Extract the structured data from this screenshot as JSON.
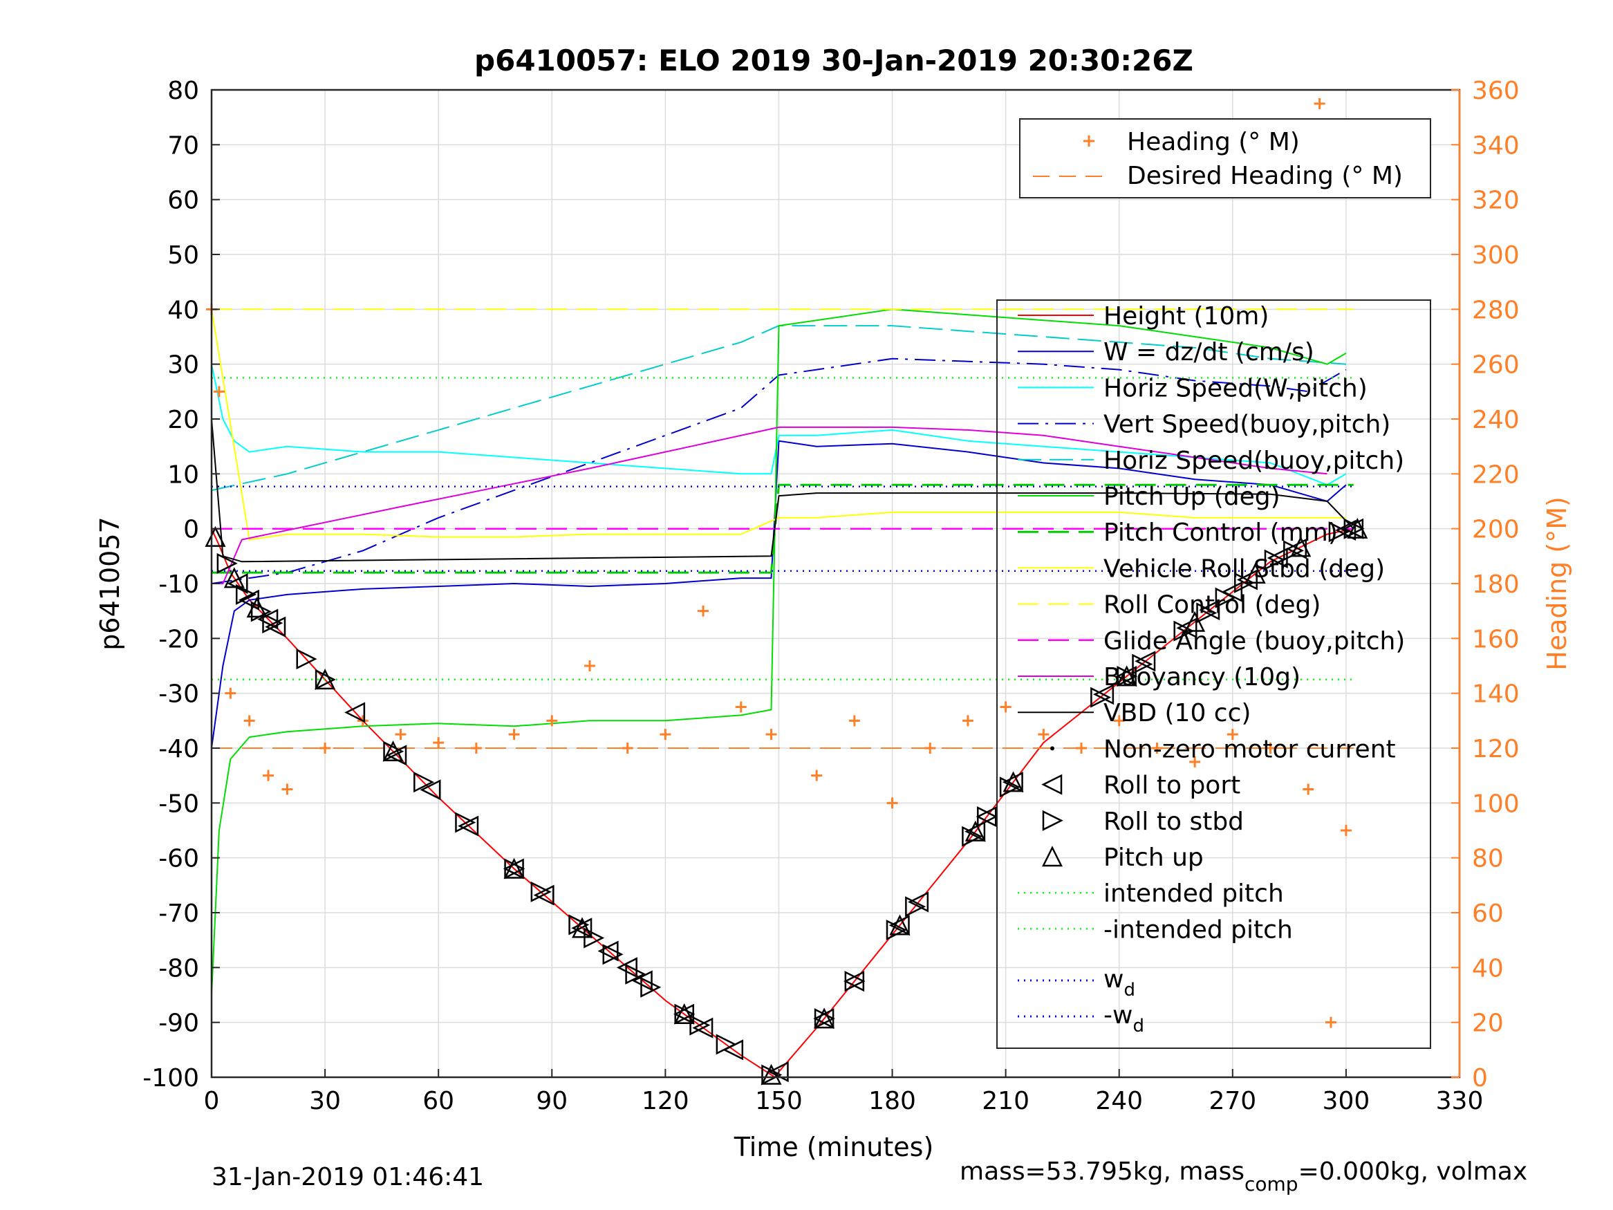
{
  "chart_data": {
    "type": "line",
    "title": "p6410057: ELO 2019 30-Jan-2019 20:30:26Z",
    "xlabel": "Time (minutes)",
    "ylabel": "p6410057",
    "y2label": "Heading (°M)",
    "xlim": [
      0,
      330
    ],
    "ylim": [
      -100,
      80
    ],
    "y2lim": [
      0,
      360
    ],
    "x_ticks": [
      "0",
      "30",
      "60",
      "90",
      "120",
      "150",
      "180",
      "210",
      "240",
      "270",
      "300",
      "330"
    ],
    "y_ticks": [
      "80",
      "70",
      "60",
      "50",
      "40",
      "30",
      "20",
      "10",
      "0",
      "-10",
      "-20",
      "-30",
      "-40",
      "-50",
      "-60",
      "-70",
      "-80",
      "-90",
      "-100"
    ],
    "y2_ticks": [
      "360",
      "340",
      "320",
      "300",
      "280",
      "260",
      "240",
      "220",
      "200",
      "180",
      "160",
      "140",
      "120",
      "100",
      "80",
      "60",
      "40",
      "20",
      "0"
    ],
    "grid": true,
    "colors": {
      "height": "#FF0000",
      "w": "#0000CC",
      "horiz_w": "#00FFFF",
      "vert_buoy": "#0000CC",
      "horiz_buoy": "#00CCCC",
      "pitch": "#00DD00",
      "pitch_ctrl": "#00CC00",
      "roll": "#FFFF00",
      "roll_ctrl": "#FFFF00",
      "glide": "#FF00FF",
      "buoyancy": "#DD00DD",
      "vbd": "#000000",
      "heading": "#FF7F27",
      "intended": "#00FF00",
      "wd": "#0000FF"
    },
    "legend_heading": {
      "placement": "top-right",
      "entries": [
        "Heading (° M)",
        "Desired Heading (° M)"
      ]
    },
    "legend_main": {
      "placement": "right",
      "entries": [
        "Height (10m)",
        "W = dz/dt (cm/s)",
        "Horiz Speed(W,pitch)",
        "Vert Speed(buoy,pitch)",
        "Horiz Speed(buoy,pitch)",
        "Pitch Up (deg)",
        "Pitch Control (mm)",
        "Vehicle Roll Stbd (deg)",
        "Roll Control (deg)",
        "Glide Angle (buoy,pitch)",
        "Buoyancy (10g)",
        "VBD (10 cc)",
        "Non-zero motor current",
        "Roll to port",
        "Roll to stbd",
        "Pitch up",
        "intended pitch",
        "-intended pitch"
      ],
      "wd_base": "w",
      "wd_sub": "d",
      "neg_wd_base": "-w"
    },
    "series": [
      {
        "name": "Height (10m)",
        "x": [
          0,
          2,
          5,
          10,
          20,
          40,
          60,
          80,
          100,
          120,
          140,
          149,
          150,
          160,
          180,
          200,
          210,
          220,
          240,
          260,
          280,
          295,
          302
        ],
        "values": [
          0,
          -3,
          -8,
          -13,
          -20,
          -35,
          -49,
          -62,
          -74,
          -86,
          -96,
          -100,
          -99,
          -91,
          -74,
          -57,
          -48,
          -39,
          -28,
          -17,
          -6,
          -1,
          0
        ]
      },
      {
        "name": "W = dz/dt (cm/s)",
        "x": [
          0,
          3,
          6,
          10,
          20,
          40,
          60,
          80,
          100,
          120,
          140,
          148,
          150,
          160,
          180,
          200,
          220,
          240,
          260,
          280,
          295,
          300
        ],
        "values": [
          -40,
          -25,
          -15,
          -13,
          -12,
          -11,
          -10.5,
          -10,
          -10.5,
          -10,
          -9,
          -9,
          16,
          15,
          15.5,
          14,
          12,
          11,
          9,
          8,
          5,
          8
        ]
      },
      {
        "name": "Horiz Speed(W,pitch)",
        "x": [
          0,
          3,
          6,
          10,
          20,
          40,
          60,
          80,
          100,
          120,
          140,
          148,
          150,
          160,
          180,
          200,
          220,
          240,
          260,
          280,
          295,
          300
        ],
        "values": [
          30,
          20,
          16,
          14,
          15,
          14,
          14,
          13,
          12,
          11,
          10,
          10,
          17,
          17,
          18,
          16,
          15,
          14,
          13,
          12,
          8,
          10
        ]
      },
      {
        "name": "Vert Speed(buoy,pitch)",
        "x": [
          0,
          20,
          40,
          60,
          80,
          100,
          120,
          140,
          150,
          160,
          180,
          200,
          220,
          240,
          260,
          280,
          290,
          300
        ],
        "values": [
          -10,
          -8,
          -4,
          2,
          7,
          12,
          17,
          22,
          28,
          29,
          31,
          30.5,
          30,
          29,
          27,
          26,
          25,
          29
        ]
      },
      {
        "name": "Horiz Speed(buoy,pitch)",
        "x": [
          0,
          20,
          40,
          60,
          80,
          100,
          120,
          140,
          150,
          160,
          180,
          200,
          220,
          240,
          260,
          280,
          300
        ],
        "values": [
          7,
          10,
          14,
          18,
          22,
          26,
          30,
          34,
          37,
          37,
          37,
          36,
          35,
          34,
          33,
          31,
          30
        ]
      },
      {
        "name": "Pitch Up (deg)",
        "x": [
          0,
          2,
          5,
          10,
          20,
          40,
          60,
          80,
          100,
          120,
          140,
          148,
          150,
          160,
          180,
          200,
          220,
          240,
          260,
          280,
          295,
          300
        ],
        "values": [
          -85,
          -55,
          -42,
          -38,
          -37,
          -36,
          -35.5,
          -36,
          -35,
          -35,
          -34,
          -33,
          37,
          38,
          40,
          39,
          38,
          37,
          35,
          33,
          30,
          32
        ]
      },
      {
        "name": "Pitch Control (mm)",
        "x": [
          0,
          148,
          150,
          302
        ],
        "values": [
          -8,
          -8,
          8,
          8
        ]
      },
      {
        "name": "Vehicle Roll Stbd (deg)",
        "x": [
          0,
          10,
          20,
          40,
          60,
          80,
          100,
          120,
          140,
          150,
          160,
          180,
          200,
          220,
          240,
          260,
          280,
          300
        ],
        "values": [
          40,
          -2,
          -1,
          -1,
          -1.5,
          -1.5,
          -1,
          -1,
          -1,
          2,
          2,
          3,
          3,
          3,
          3,
          2,
          2,
          2
        ]
      },
      {
        "name": "Roll Control (deg)",
        "x": [
          0,
          302
        ],
        "values": [
          40,
          40
        ]
      },
      {
        "name": "Glide Angle (buoy,pitch)",
        "x": [
          0,
          302
        ],
        "values": [
          0,
          0
        ]
      },
      {
        "name": "Buoyancy (10g)",
        "x": [
          0,
          3,
          8,
          50,
          100,
          150,
          180,
          200,
          220,
          240,
          260,
          280,
          295
        ],
        "values": [
          -10,
          -10,
          -2,
          4,
          11,
          18.5,
          18.5,
          18,
          17,
          15,
          13,
          11,
          10
        ]
      },
      {
        "name": "VBD (10 cc)",
        "x": [
          0,
          3,
          8,
          148,
          150,
          160,
          200,
          240,
          280,
          295,
          302
        ],
        "values": [
          20,
          -5,
          -6,
          -5,
          6,
          6.5,
          6.5,
          6.5,
          6.3,
          5,
          0
        ]
      },
      {
        "name": "Heading (° M)",
        "x": [
          0,
          2,
          5,
          10,
          15,
          20,
          30,
          40,
          50,
          60,
          70,
          80,
          90,
          100,
          110,
          120,
          130,
          140,
          148,
          160,
          170,
          180,
          190,
          200,
          210,
          220,
          230,
          240,
          250,
          260,
          270,
          280,
          290,
          293,
          296,
          300
        ],
        "values": [
          280,
          250,
          140,
          130,
          110,
          105,
          120,
          130,
          125,
          122,
          120,
          125,
          130,
          150,
          120,
          125,
          170,
          135,
          125,
          110,
          130,
          100,
          120,
          130,
          135,
          125,
          120,
          130,
          120,
          115,
          125,
          120,
          105,
          355,
          20,
          90
        ]
      },
      {
        "name": "Desired Heading (° M)",
        "x": [
          0,
          302
        ],
        "values": [
          120,
          120
        ]
      },
      {
        "name": "intended pitch",
        "x": [
          0,
          302
        ],
        "values": [
          27.5,
          27.5
        ]
      },
      {
        "name": "-intended pitch",
        "x": [
          0,
          302
        ],
        "values": [
          -27.5,
          -27.5
        ]
      },
      {
        "name": "w_d",
        "x": [
          0,
          302
        ],
        "values": [
          7.7,
          7.7
        ]
      },
      {
        "name": "-w_d",
        "x": [
          0,
          302
        ],
        "values": [
          -7.7,
          -7.7
        ]
      }
    ],
    "markers": {
      "Roll to port": [
        7,
        10,
        15,
        17,
        38,
        49,
        58,
        68,
        80,
        88,
        98,
        105,
        110,
        114,
        125,
        130,
        138,
        150,
        162,
        170,
        182,
        187,
        202,
        205,
        212,
        236,
        242,
        247,
        258,
        264,
        270,
        274,
        282,
        287,
        300,
        302
      ],
      "Roll to stbd": [
        4,
        9,
        13,
        16,
        25,
        30,
        48,
        56,
        67,
        80,
        87,
        97,
        101,
        106,
        112,
        116,
        125,
        129,
        136,
        148,
        162,
        170,
        181,
        186,
        201,
        205,
        211,
        235,
        242,
        246,
        257,
        263,
        268,
        273,
        281,
        286,
        298,
        302
      ],
      "Pitch up": [
        1,
        6,
        12,
        30,
        48,
        80,
        98,
        125,
        148,
        162,
        182,
        202,
        212,
        242,
        260,
        276,
        288,
        303
      ]
    },
    "footer_left": "31-Jan-2019 01:46:41",
    "footer_right_prefix": "mass=53.795kg, mass",
    "footer_right_sub": "comp",
    "footer_right_suffix": "=0.000kg, volmax"
  }
}
